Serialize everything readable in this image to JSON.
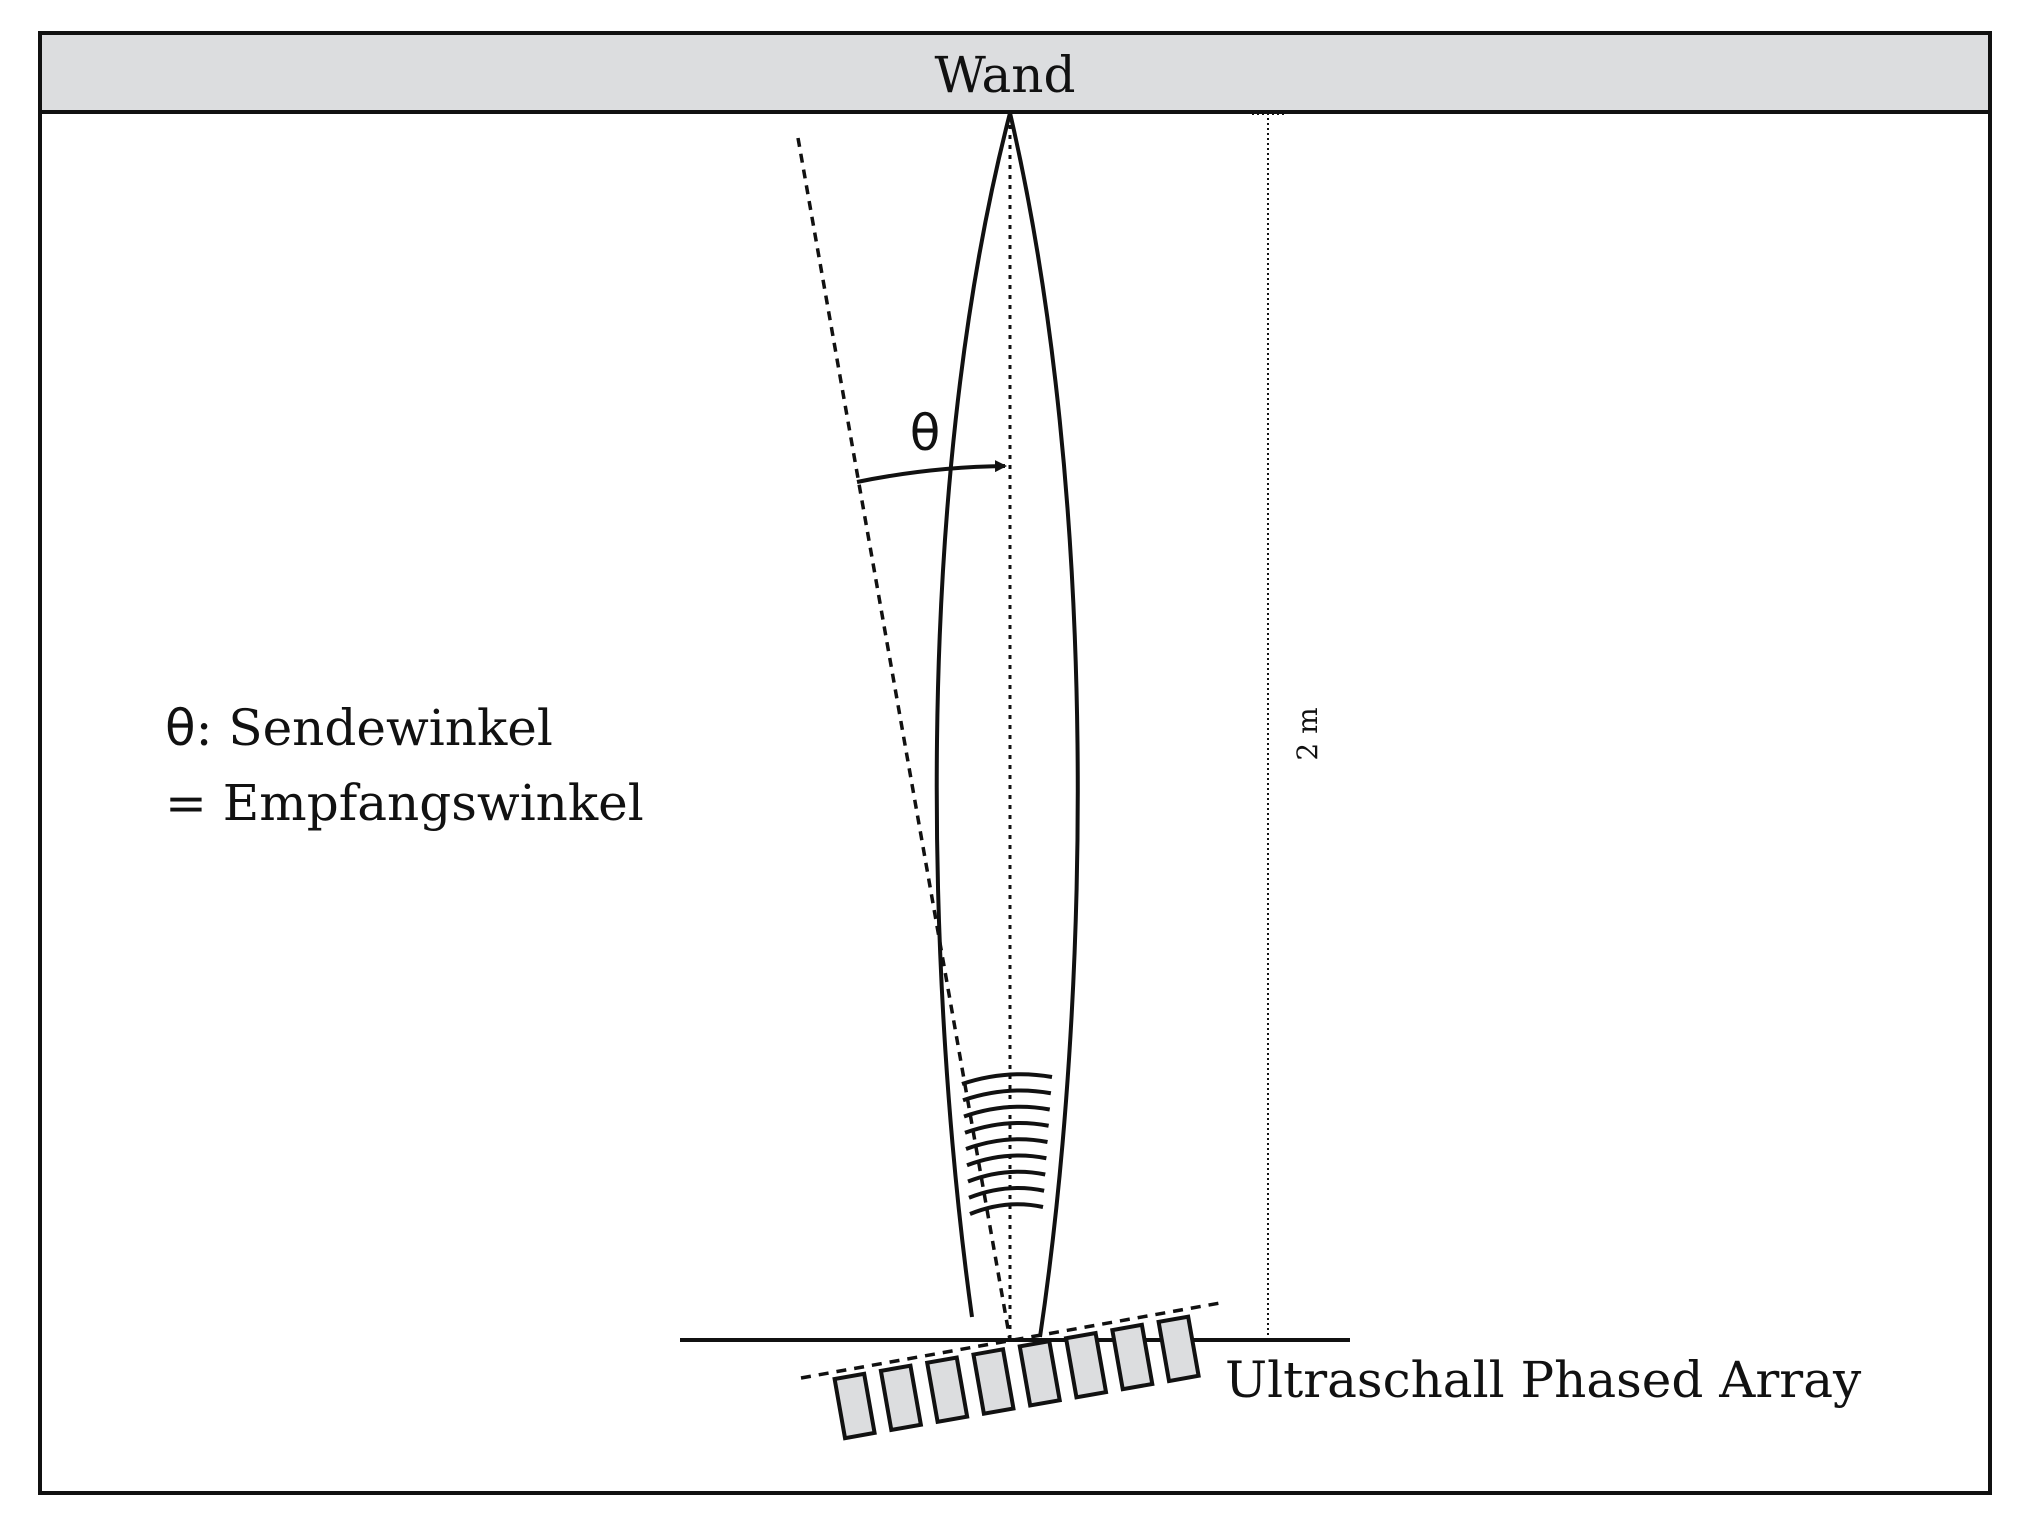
{
  "wall": {
    "label": "Wand",
    "fill_color": "#dcdddf"
  },
  "angle": {
    "symbol": "θ"
  },
  "legend": {
    "line1_symbol": "θ",
    "line1_text": ": Sendewinkel",
    "line2_text": "= Empfangswinkel"
  },
  "distance": {
    "label": "2 m"
  },
  "array": {
    "label": "Ultraschall Phased Array",
    "element_count": 8,
    "element_fill": "#dcdddf"
  },
  "colors": {
    "stroke": "#111111",
    "background": "#ffffff"
  }
}
